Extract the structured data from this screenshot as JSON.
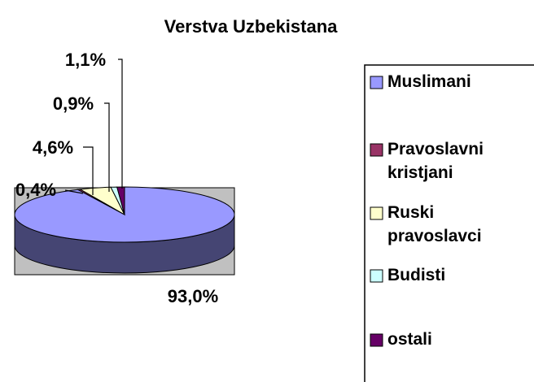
{
  "chart_data": {
    "type": "pie3d",
    "title": "Verstva Uzbekistana",
    "categories": [
      "Muslimani",
      "Pravoslavni kristjani",
      "Ruski pravoslavci",
      "Budisti",
      "ostali"
    ],
    "values": [
      93.0,
      0.4,
      4.6,
      0.9,
      1.1
    ],
    "value_labels": [
      "93,0%",
      "0,4%",
      "4,6%",
      "0,9%",
      "1,1%"
    ],
    "colors": [
      "#9999ff",
      "#993366",
      "#ffffcc",
      "#ccffff",
      "#660066"
    ],
    "legend": "right"
  }
}
